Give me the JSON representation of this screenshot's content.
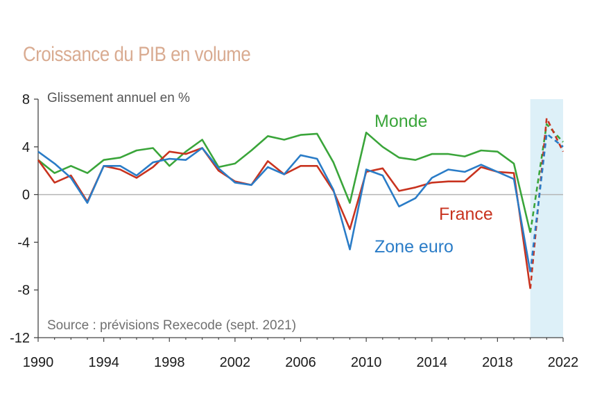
{
  "chart_data": {
    "type": "line",
    "title": "Croissance du PIB en volume",
    "unit_label": "Glissement annuel en %",
    "source": "Source : prévisions Rexecode (sept. 2021)",
    "xlim": [
      1990,
      2022
    ],
    "ylim": [
      -12,
      8
    ],
    "x_ticks": [
      1990,
      1994,
      1998,
      2002,
      2006,
      2010,
      2014,
      2018,
      2022
    ],
    "y_ticks": [
      8,
      4,
      0,
      -4,
      -8,
      -12
    ],
    "forecast_region": [
      2020,
      2022
    ],
    "forecast_from": 2020,
    "forecast_color": "#ddf0f8",
    "x": [
      1990,
      1991,
      1992,
      1993,
      1994,
      1995,
      1996,
      1997,
      1998,
      1999,
      2000,
      2001,
      2002,
      2003,
      2004,
      2005,
      2006,
      2007,
      2008,
      2009,
      2010,
      2011,
      2012,
      2013,
      2014,
      2015,
      2016,
      2017,
      2018,
      2019,
      2020,
      2021,
      2022
    ],
    "series": [
      {
        "name": "Monde",
        "color": "#3aa53a",
        "values": [
          2.9,
          1.8,
          2.4,
          1.8,
          2.9,
          3.1,
          3.7,
          3.9,
          2.4,
          3.6,
          4.6,
          2.3,
          2.6,
          3.7,
          4.9,
          4.6,
          5.0,
          5.1,
          2.7,
          -0.7,
          5.2,
          4.0,
          3.1,
          2.9,
          3.4,
          3.4,
          3.2,
          3.7,
          3.6,
          2.6,
          -3.2,
          5.9,
          4.4
        ]
      },
      {
        "name": "France",
        "color": "#c8331f",
        "values": [
          2.9,
          1.0,
          1.6,
          -0.6,
          2.4,
          2.1,
          1.4,
          2.3,
          3.6,
          3.4,
          3.9,
          2.0,
          1.1,
          0.8,
          2.8,
          1.7,
          2.4,
          2.4,
          0.3,
          -2.9,
          1.9,
          2.2,
          0.3,
          0.6,
          1.0,
          1.1,
          1.1,
          2.3,
          1.9,
          1.8,
          -7.9,
          6.4,
          3.6
        ]
      },
      {
        "name": "Zone euro",
        "color": "#2a7cc7",
        "values": [
          3.6,
          2.6,
          1.4,
          -0.7,
          2.4,
          2.4,
          1.6,
          2.7,
          3.0,
          2.9,
          3.9,
          2.2,
          1.0,
          0.8,
          2.3,
          1.7,
          3.3,
          3.0,
          0.4,
          -4.6,
          2.1,
          1.6,
          -1.0,
          -0.3,
          1.4,
          2.1,
          1.9,
          2.5,
          1.9,
          1.3,
          -6.5,
          5.1,
          4.0
        ]
      }
    ]
  }
}
